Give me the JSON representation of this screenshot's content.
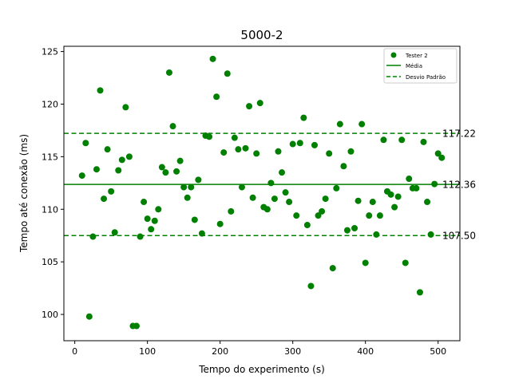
{
  "chart_data": {
    "type": "scatter",
    "title": "5000-2",
    "xlabel": "Tempo do experimento (s)",
    "ylabel": "Tempo até conexão (ms)",
    "xlim": [
      -15,
      530
    ],
    "ylim": [
      97.5,
      125.5
    ],
    "xticks": [
      "0",
      "100",
      "200",
      "300",
      "400",
      "500"
    ],
    "yticks": [
      "100",
      "105",
      "110",
      "115",
      "120",
      "125"
    ],
    "grid": false,
    "legend_position": "top-right",
    "legend": [
      "Tester 2",
      "Média",
      "Desvio Padrão"
    ],
    "colors": {
      "series": "#008000",
      "axes": "#000000",
      "background": "#ffffff"
    },
    "series": [
      {
        "name": "Tester 2",
        "points": [
          [
            10,
            113.2
          ],
          [
            15,
            116.3
          ],
          [
            20,
            99.8
          ],
          [
            25,
            107.4
          ],
          [
            30,
            113.8
          ],
          [
            35,
            121.3
          ],
          [
            40,
            111.0
          ],
          [
            45,
            115.7
          ],
          [
            50,
            111.7
          ],
          [
            55,
            107.8
          ],
          [
            60,
            113.7
          ],
          [
            65,
            114.7
          ],
          [
            70,
            119.7
          ],
          [
            75,
            115.0
          ],
          [
            80,
            98.9
          ],
          [
            85,
            98.9
          ],
          [
            90,
            107.4
          ],
          [
            95,
            110.7
          ],
          [
            100,
            109.1
          ],
          [
            105,
            108.1
          ],
          [
            110,
            108.9
          ],
          [
            115,
            110.0
          ],
          [
            120,
            114.0
          ],
          [
            125,
            113.5
          ],
          [
            130,
            123.0
          ],
          [
            135,
            117.9
          ],
          [
            140,
            113.6
          ],
          [
            145,
            114.6
          ],
          [
            150,
            112.1
          ],
          [
            155,
            111.1
          ],
          [
            160,
            112.1
          ],
          [
            165,
            109.0
          ],
          [
            170,
            112.8
          ],
          [
            175,
            107.7
          ],
          [
            180,
            117.0
          ],
          [
            185,
            116.9
          ],
          [
            190,
            124.3
          ],
          [
            195,
            120.7
          ],
          [
            200,
            108.6
          ],
          [
            205,
            115.4
          ],
          [
            210,
            122.9
          ],
          [
            215,
            109.8
          ],
          [
            220,
            116.8
          ],
          [
            225,
            115.7
          ],
          [
            230,
            112.1
          ],
          [
            235,
            115.8
          ],
          [
            240,
            119.8
          ],
          [
            245,
            111.1
          ],
          [
            250,
            115.3
          ],
          [
            255,
            120.1
          ],
          [
            260,
            110.2
          ],
          [
            265,
            110.0
          ],
          [
            270,
            112.5
          ],
          [
            275,
            111.0
          ],
          [
            280,
            115.5
          ],
          [
            285,
            113.5
          ],
          [
            290,
            111.6
          ],
          [
            295,
            110.7
          ],
          [
            300,
            116.2
          ],
          [
            305,
            109.4
          ],
          [
            310,
            116.3
          ],
          [
            315,
            118.7
          ],
          [
            320,
            108.5
          ],
          [
            325,
            102.7
          ],
          [
            330,
            116.1
          ],
          [
            335,
            109.4
          ],
          [
            340,
            109.8
          ],
          [
            345,
            111.0
          ],
          [
            350,
            115.3
          ],
          [
            355,
            104.4
          ],
          [
            360,
            112.0
          ],
          [
            365,
            118.1
          ],
          [
            370,
            114.1
          ],
          [
            375,
            108.0
          ],
          [
            380,
            115.5
          ],
          [
            385,
            108.2
          ],
          [
            390,
            110.8
          ],
          [
            395,
            118.1
          ],
          [
            400,
            104.9
          ],
          [
            405,
            109.4
          ],
          [
            410,
            110.7
          ],
          [
            415,
            107.6
          ],
          [
            420,
            109.4
          ],
          [
            425,
            116.6
          ],
          [
            430,
            111.7
          ],
          [
            435,
            111.4
          ],
          [
            440,
            110.2
          ],
          [
            445,
            111.2
          ],
          [
            450,
            116.6
          ],
          [
            455,
            104.9
          ],
          [
            460,
            112.9
          ],
          [
            465,
            112.0
          ],
          [
            470,
            112.0
          ],
          [
            475,
            102.1
          ],
          [
            480,
            116.4
          ],
          [
            485,
            110.7
          ],
          [
            490,
            107.6
          ],
          [
            495,
            112.4
          ],
          [
            500,
            115.3
          ],
          [
            505,
            114.9
          ]
        ]
      }
    ],
    "reference_lines": [
      {
        "name": "Média",
        "y": 112.36,
        "label": "112.36",
        "style": "solid"
      },
      {
        "name": "Desvio Padrão",
        "y": 117.22,
        "label": "117.22",
        "style": "dashed"
      },
      {
        "name": "Desvio Padrão",
        "y": 107.5,
        "label": "107.50",
        "style": "dashed"
      }
    ]
  }
}
